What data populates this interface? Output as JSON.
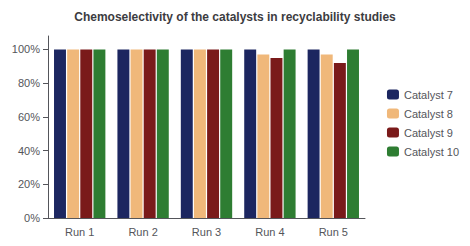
{
  "chart_data": {
    "type": "bar",
    "title": "Chemoselectivity of the catalysts in recyclability studies",
    "categories": [
      "Run 1",
      "Run 2",
      "Run 3",
      "Run 4",
      "Run 5"
    ],
    "series": [
      {
        "name": "Catalyst 7",
        "color": "#1c2660",
        "values": [
          100,
          100,
          100,
          100,
          100
        ]
      },
      {
        "name": "Catalyst 8",
        "color": "#f0b87a",
        "values": [
          100,
          100,
          100,
          97,
          97
        ]
      },
      {
        "name": "Catalyst 9",
        "color": "#7a1a1a",
        "values": [
          100,
          100,
          100,
          95,
          92
        ]
      },
      {
        "name": "Catalyst 10",
        "color": "#2e7d32",
        "values": [
          100,
          100,
          100,
          100,
          100
        ]
      }
    ],
    "ylim": [
      0,
      108
    ],
    "yticks": [
      {
        "value": 0,
        "label": "0%"
      },
      {
        "value": 20,
        "label": "20%"
      },
      {
        "value": 40,
        "label": "40%"
      },
      {
        "value": 60,
        "label": "60%"
      },
      {
        "value": 80,
        "label": "80%"
      },
      {
        "value": 100,
        "label": "100%"
      }
    ],
    "grid": false,
    "legend": "right"
  }
}
